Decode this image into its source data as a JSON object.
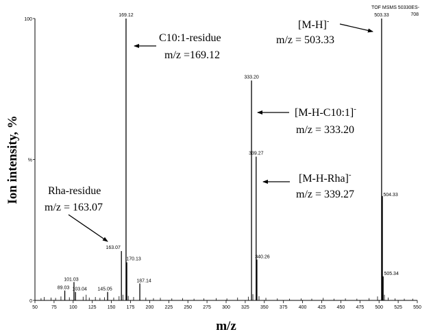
{
  "chart_data": {
    "type": "bar",
    "title": "",
    "corner_label": [
      "TOF MSMS 50330ES-",
      "708"
    ],
    "xlabel": "m/z",
    "ylabel": "Ion intensity, %",
    "xlim": [
      50,
      550
    ],
    "ylim": [
      0,
      100
    ],
    "x_ticks": [
      50,
      75,
      100,
      125,
      150,
      175,
      200,
      225,
      250,
      275,
      300,
      325,
      350,
      375,
      400,
      425,
      450,
      475,
      500,
      525,
      550
    ],
    "y_tick_labels": [
      {
        "value": 100,
        "label": "100"
      },
      {
        "value": 50,
        "label": "%"
      },
      {
        "value": 0,
        "label": "0"
      }
    ],
    "peaks": [
      {
        "mz": 89.03,
        "intensity": 3.5,
        "label": "89.03"
      },
      {
        "mz": 101.03,
        "intensity": 6.5,
        "label": "101.03"
      },
      {
        "mz": 103.04,
        "intensity": 3.0,
        "label": "103.04"
      },
      {
        "mz": 145.05,
        "intensity": 3.0,
        "label": "145.05"
      },
      {
        "mz": 163.07,
        "intensity": 17.5,
        "label": "163.07"
      },
      {
        "mz": 169.12,
        "intensity": 100,
        "label": "169.12"
      },
      {
        "mz": 170.13,
        "intensity": 13.5,
        "label": "170.13"
      },
      {
        "mz": 187.14,
        "intensity": 6.0,
        "label": "187.14"
      },
      {
        "mz": 333.2,
        "intensity": 78,
        "label": "333.20"
      },
      {
        "mz": 339.27,
        "intensity": 51,
        "label": "339.27"
      },
      {
        "mz": 340.26,
        "intensity": 14.5,
        "label": "340.26"
      },
      {
        "mz": 503.33,
        "intensity": 100,
        "label": "503.33"
      },
      {
        "mz": 504.33,
        "intensity": 37,
        "label": "504.33"
      },
      {
        "mz": 505.34,
        "intensity": 8.5,
        "label": "505.34"
      }
    ],
    "minor_peaks": [
      {
        "mz": 58,
        "intensity": 0.8
      },
      {
        "mz": 62,
        "intensity": 1.2
      },
      {
        "mz": 71,
        "intensity": 1.0
      },
      {
        "mz": 77,
        "intensity": 0.9
      },
      {
        "mz": 84,
        "intensity": 1.4
      },
      {
        "mz": 95,
        "intensity": 1.1
      },
      {
        "mz": 113,
        "intensity": 1.3
      },
      {
        "mz": 117,
        "intensity": 2.0
      },
      {
        "mz": 121,
        "intensity": 1.0
      },
      {
        "mz": 129,
        "intensity": 1.2
      },
      {
        "mz": 135,
        "intensity": 0.9
      },
      {
        "mz": 141,
        "intensity": 1.1
      },
      {
        "mz": 153,
        "intensity": 1.0
      },
      {
        "mz": 160,
        "intensity": 1.5
      },
      {
        "mz": 165,
        "intensity": 2.0
      },
      {
        "mz": 172,
        "intensity": 1.6
      },
      {
        "mz": 179,
        "intensity": 1.2
      },
      {
        "mz": 195,
        "intensity": 1.0
      },
      {
        "mz": 205,
        "intensity": 0.8
      },
      {
        "mz": 214,
        "intensity": 0.9
      },
      {
        "mz": 229,
        "intensity": 0.7
      },
      {
        "mz": 243,
        "intensity": 0.8
      },
      {
        "mz": 258,
        "intensity": 0.6
      },
      {
        "mz": 271,
        "intensity": 0.7
      },
      {
        "mz": 287,
        "intensity": 0.8
      },
      {
        "mz": 301,
        "intensity": 0.7
      },
      {
        "mz": 315,
        "intensity": 1.0
      },
      {
        "mz": 329,
        "intensity": 1.3
      },
      {
        "mz": 335,
        "intensity": 2.2
      },
      {
        "mz": 343,
        "intensity": 1.5
      },
      {
        "mz": 352,
        "intensity": 0.9
      },
      {
        "mz": 367,
        "intensity": 0.7
      },
      {
        "mz": 383,
        "intensity": 0.6
      },
      {
        "mz": 398,
        "intensity": 0.7
      },
      {
        "mz": 412,
        "intensity": 0.6
      },
      {
        "mz": 427,
        "intensity": 0.9
      },
      {
        "mz": 441,
        "intensity": 0.6
      },
      {
        "mz": 456,
        "intensity": 0.7
      },
      {
        "mz": 471,
        "intensity": 0.6
      },
      {
        "mz": 487,
        "intensity": 0.8
      },
      {
        "mz": 498,
        "intensity": 1.4
      },
      {
        "mz": 507,
        "intensity": 2.0
      },
      {
        "mz": 512,
        "intensity": 1.0
      },
      {
        "mz": 521,
        "intensity": 0.7
      },
      {
        "mz": 533,
        "intensity": 0.6
      },
      {
        "mz": 544,
        "intensity": 0.6
      }
    ],
    "annotations": [
      {
        "lines": [
          "C10:1-residue",
          "m/z =169.12"
        ],
        "points_to": 169.12
      },
      {
        "lines": [
          "[M-H]",
          "m/z = 503.33"
        ],
        "superscript": "-",
        "points_to": 503.33
      },
      {
        "lines": [
          "[M-H-C10:1]",
          "m/z = 333.20"
        ],
        "superscript": "-",
        "points_to": 333.2
      },
      {
        "lines": [
          "[M-H-Rha]",
          "m/z = 339.27"
        ],
        "superscript": "-",
        "points_to": 339.27
      },
      {
        "lines": [
          "Rha-residue",
          "m/z = 163.07"
        ],
        "points_to": 163.07
      }
    ]
  }
}
